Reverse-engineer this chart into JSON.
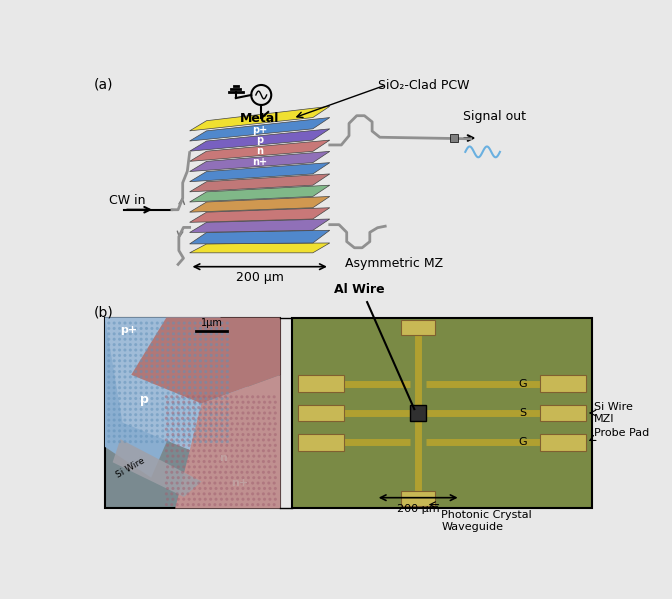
{
  "bg_color": "#e8e8e8",
  "label_a": "(a)",
  "label_b": "(b)",
  "panel_a": {
    "metal_color": "#f0e030",
    "metal_label": "Metal",
    "layer_colors_top": [
      "#5080c8",
      "#7060b8",
      "#b87878",
      "#d09050",
      "#78b870",
      "#c07878",
      "#5080b8"
    ],
    "layer_labels": [
      "p+",
      "p",
      "n",
      "n+"
    ],
    "cw_in_label": "CW in",
    "signal_out_label": "Signal out",
    "asymmetric_mz_label": "Asymmetric MZ",
    "sio2_label": "SiO₂-Clad PCW",
    "scale_label": "200 μm",
    "wave_color": "#6ab0e0",
    "wire_color": "#909090"
  },
  "panel_b": {
    "sem_bg_blue": "#8aaccf",
    "sem_bg_pink": "#c89898",
    "sem_bg_dark": "#808090",
    "circuit_bg": "#7a8a45",
    "pad_color": "#c8b855",
    "al_wire_label": "Al Wire",
    "probe_pad_label": "Probe Pad",
    "si_wire_mzi_label": "Si Wire\nMZI",
    "photonic_crystal_label": "Photonic Crystal\nWaveguide",
    "scale_label": "200 μm",
    "scale_label2": "1μm"
  }
}
